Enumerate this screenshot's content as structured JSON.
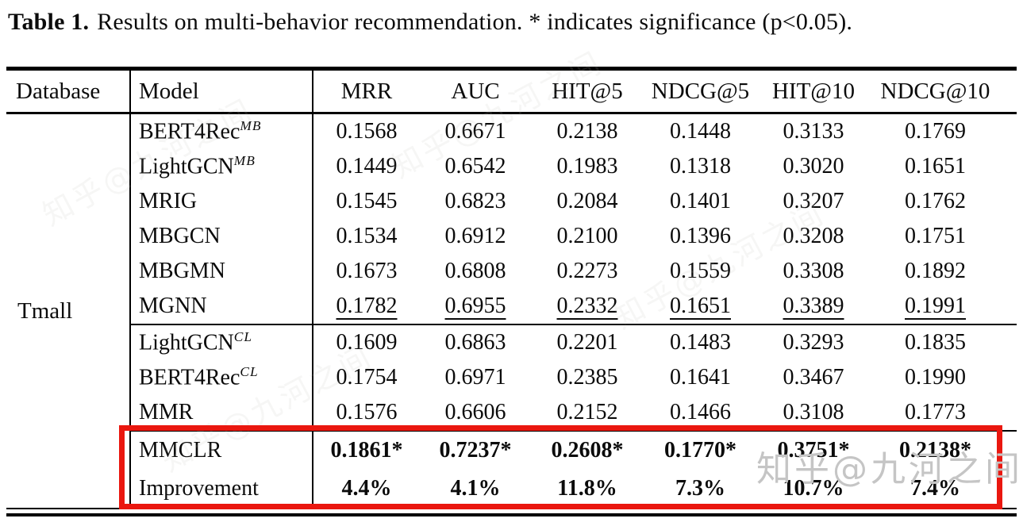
{
  "title": {
    "label": "Table 1.",
    "text": "Results on multi-behavior recommendation. * indicates significance (p<0.05)."
  },
  "watermark": {
    "text": "知乎@九河之间"
  },
  "colors": {
    "highlight_box": "#ea170f",
    "watermark_gray": "#c5c5c5"
  },
  "table": {
    "database_label": "Tmall",
    "columns": [
      "Database",
      "Model",
      "MRR",
      "AUC",
      "HIT@5",
      "NDCG@5",
      "HIT@10",
      "NDCG@10"
    ],
    "groups": [
      {
        "highlighted": false,
        "rows": [
          {
            "model": "BERT4Rec",
            "sup": "MB",
            "style": "normal",
            "values": [
              "0.1568",
              "0.6671",
              "0.2138",
              "0.1448",
              "0.3133",
              "0.1769"
            ]
          },
          {
            "model": "LightGCN",
            "sup": "MB",
            "style": "normal",
            "values": [
              "0.1449",
              "0.6542",
              "0.1983",
              "0.1318",
              "0.3020",
              "0.1651"
            ]
          },
          {
            "model": "MRIG",
            "sup": "",
            "style": "normal",
            "values": [
              "0.1545",
              "0.6823",
              "0.2084",
              "0.1401",
              "0.3207",
              "0.1762"
            ]
          },
          {
            "model": "MBGCN",
            "sup": "",
            "style": "normal",
            "values": [
              "0.1534",
              "0.6912",
              "0.2100",
              "0.1396",
              "0.3208",
              "0.1751"
            ]
          },
          {
            "model": "MBGMN",
            "sup": "",
            "style": "normal",
            "values": [
              "0.1673",
              "0.6808",
              "0.2273",
              "0.1559",
              "0.3308",
              "0.1892"
            ]
          },
          {
            "model": "MGNN",
            "sup": "",
            "style": "underline",
            "values": [
              "0.1782",
              "0.6955",
              "0.2332",
              "0.1651",
              "0.3389",
              "0.1991"
            ]
          }
        ]
      },
      {
        "highlighted": false,
        "rows": [
          {
            "model": "LightGCN",
            "sup": "CL",
            "style": "normal",
            "values": [
              "0.1609",
              "0.6863",
              "0.2201",
              "0.1483",
              "0.3293",
              "0.1835"
            ]
          },
          {
            "model": "BERT4Rec",
            "sup": "CL",
            "style": "normal",
            "values": [
              "0.1754",
              "0.6971",
              "0.2385",
              "0.1641",
              "0.3467",
              "0.1990"
            ]
          },
          {
            "model": "MMR",
            "sup": "",
            "style": "normal",
            "values": [
              "0.1576",
              "0.6606",
              "0.2152",
              "0.1466",
              "0.3108",
              "0.1773"
            ]
          }
        ]
      },
      {
        "highlighted": true,
        "rows": [
          {
            "model": "MMCLR",
            "sup": "",
            "style": "bold",
            "values": [
              "0.1861*",
              "0.7237*",
              "0.2608*",
              "0.1770*",
              "0.3751*",
              "0.2138*"
            ]
          },
          {
            "model": "Improvement",
            "sup": "",
            "style": "bold",
            "values": [
              "4.4%",
              "4.1%",
              "11.8%",
              "7.3%",
              "10.7%",
              "7.4%"
            ]
          }
        ]
      }
    ]
  }
}
